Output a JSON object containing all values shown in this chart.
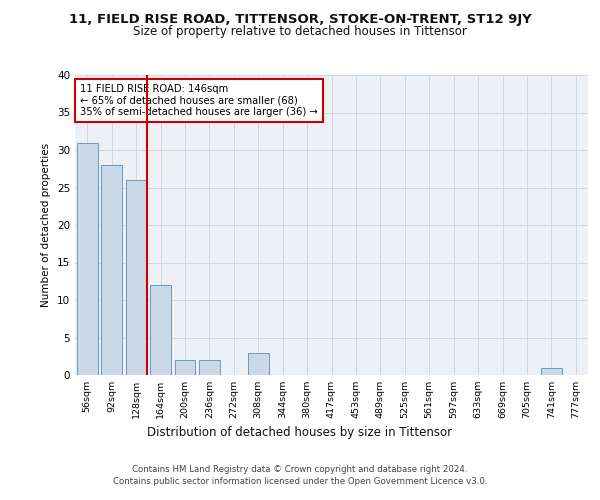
{
  "title1": "11, FIELD RISE ROAD, TITTENSOR, STOKE-ON-TRENT, ST12 9JY",
  "title2": "Size of property relative to detached houses in Tittensor",
  "xlabel": "Distribution of detached houses by size in Tittensor",
  "ylabel": "Number of detached properties",
  "categories": [
    "56sqm",
    "92sqm",
    "128sqm",
    "164sqm",
    "200sqm",
    "236sqm",
    "272sqm",
    "308sqm",
    "344sqm",
    "380sqm",
    "417sqm",
    "453sqm",
    "489sqm",
    "525sqm",
    "561sqm",
    "597sqm",
    "633sqm",
    "669sqm",
    "705sqm",
    "741sqm",
    "777sqm"
  ],
  "values": [
    31,
    28,
    26,
    12,
    2,
    2,
    0,
    3,
    0,
    0,
    0,
    0,
    0,
    0,
    0,
    0,
    0,
    0,
    0,
    1,
    0
  ],
  "bar_color": "#c9d9e8",
  "bar_edge_color": "#5b8db8",
  "grid_color": "#d0d8e0",
  "annotation_box_text": "11 FIELD RISE ROAD: 146sqm\n← 65% of detached houses are smaller (68)\n35% of semi-detached houses are larger (36) →",
  "annotation_box_color": "#ffffff",
  "annotation_box_edge_color": "#cc0000",
  "vline_color": "#cc0000",
  "ylim": [
    0,
    40
  ],
  "yticks": [
    0,
    5,
    10,
    15,
    20,
    25,
    30,
    35,
    40
  ],
  "footer1": "Contains HM Land Registry data © Crown copyright and database right 2024.",
  "footer2": "Contains public sector information licensed under the Open Government Licence v3.0.",
  "bg_color": "#edf1f7"
}
